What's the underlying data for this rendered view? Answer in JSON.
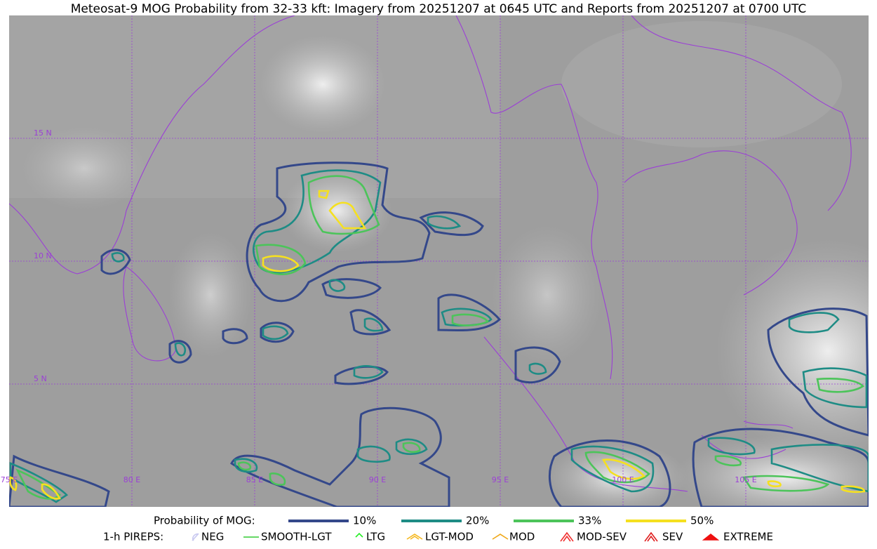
{
  "header": {
    "title": "Meteosat-9 MOG Probability from 32-33 kft: Imagery from 20251207 at 0645 UTC and Reports from 20251207 at 0700 UTC"
  },
  "map": {
    "latitude_labels": [
      "15 N",
      "10 N",
      "5 N"
    ],
    "longitude_labels": [
      "75 E",
      "80 E",
      "85 E",
      "90 E",
      "95 E",
      "100 E",
      "105 E"
    ],
    "grid_color": "#9b3fd6"
  },
  "legend": {
    "probability": {
      "label": "Probability of MOG:",
      "items": [
        {
          "label": "10%",
          "color": "#34488a"
        },
        {
          "label": "20%",
          "color": "#1e8c85"
        },
        {
          "label": "33%",
          "color": "#4cc45a"
        },
        {
          "label": "50%",
          "color": "#f5e020"
        }
      ]
    },
    "pireps": {
      "label": "1-h PIREPS:",
      "items": [
        {
          "label": "NEG",
          "color": "#c8c8f0"
        },
        {
          "label": "SMOOTH-LGT",
          "color": "#33cc33"
        },
        {
          "label": "LTG",
          "color": "#22ee22"
        },
        {
          "label": "LGT-MOD",
          "color": "#f5b820"
        },
        {
          "label": "MOD",
          "color": "#f0a818"
        },
        {
          "label": "MOD-SEV",
          "color": "#f03030"
        },
        {
          "label": "SEV",
          "color": "#e02020"
        },
        {
          "label": "EXTREME",
          "color": "#ee1010"
        }
      ]
    }
  }
}
